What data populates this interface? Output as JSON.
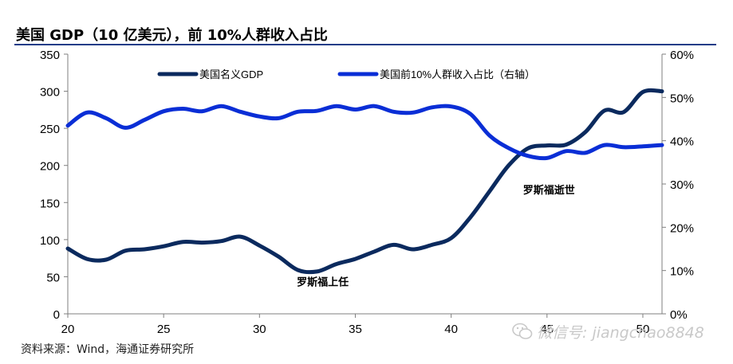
{
  "title": "美国 GDP（10 亿美元），前 10%人群收入占比",
  "source": "资料来源：Wind，海通证券研究所",
  "watermark": "微信号: jiangchao8848",
  "colors": {
    "gdp": "#0b2a5e",
    "share": "#0a2ed6",
    "axis": "#7f7f7f",
    "title_rule": "#1f3c88"
  },
  "chart_data": {
    "type": "line",
    "x_tick_labels": [
      "20",
      "25",
      "30",
      "35",
      "40",
      "45",
      "50"
    ],
    "xlim": [
      20,
      51
    ],
    "y_left": {
      "ylim": [
        0,
        350
      ],
      "ticks": [
        "0",
        "50",
        "100",
        "150",
        "200",
        "250",
        "300",
        "350"
      ]
    },
    "y_right": {
      "ylim": [
        0,
        60
      ],
      "ticks": [
        "0%",
        "10%",
        "20%",
        "30%",
        "40%",
        "50%",
        "60%"
      ]
    },
    "legend_position": "top-center",
    "series": [
      {
        "name": "美国名义GDP",
        "axis": "left",
        "color": "#0b2a5e",
        "x": [
          20,
          21,
          22,
          23,
          24,
          25,
          26,
          27,
          28,
          29,
          30,
          31,
          32,
          33,
          34,
          35,
          36,
          37,
          38,
          39,
          40,
          41,
          42,
          43,
          44,
          45,
          46,
          47,
          48,
          49,
          50,
          51
        ],
        "values": [
          88,
          74,
          73,
          85,
          87,
          91,
          97,
          96,
          98,
          104,
          92,
          77,
          59,
          57,
          67,
          74,
          84,
          93,
          87,
          93,
          102,
          130,
          165,
          200,
          223,
          227,
          228,
          245,
          274,
          272,
          299,
          300
        ]
      },
      {
        "name": "美国前10%人群收入占比（右轴）",
        "axis": "right",
        "color": "#0a2ed6",
        "x": [
          20,
          21,
          22,
          23,
          24,
          25,
          26,
          27,
          28,
          29,
          30,
          31,
          32,
          33,
          34,
          35,
          36,
          37,
          38,
          39,
          40,
          41,
          42,
          43,
          44,
          45,
          46,
          47,
          48,
          49,
          50,
          51
        ],
        "values": [
          43.5,
          46.5,
          45.2,
          43.0,
          44.8,
          46.8,
          47.4,
          46.8,
          48.0,
          46.7,
          45.6,
          45.2,
          46.7,
          46.9,
          48.0,
          47.2,
          48.0,
          46.7,
          46.5,
          47.7,
          47.9,
          46.2,
          41.2,
          38.3,
          36.5,
          36.0,
          37.6,
          37.2,
          39.0,
          38.5,
          38.7,
          39.0
        ]
      }
    ],
    "annotations": [
      {
        "text": "罗斯福上任",
        "x": 33.3,
        "y": 38,
        "axis": "left"
      },
      {
        "text": "罗斯福逝世",
        "x": 45.1,
        "y": 162,
        "axis": "left"
      }
    ]
  }
}
